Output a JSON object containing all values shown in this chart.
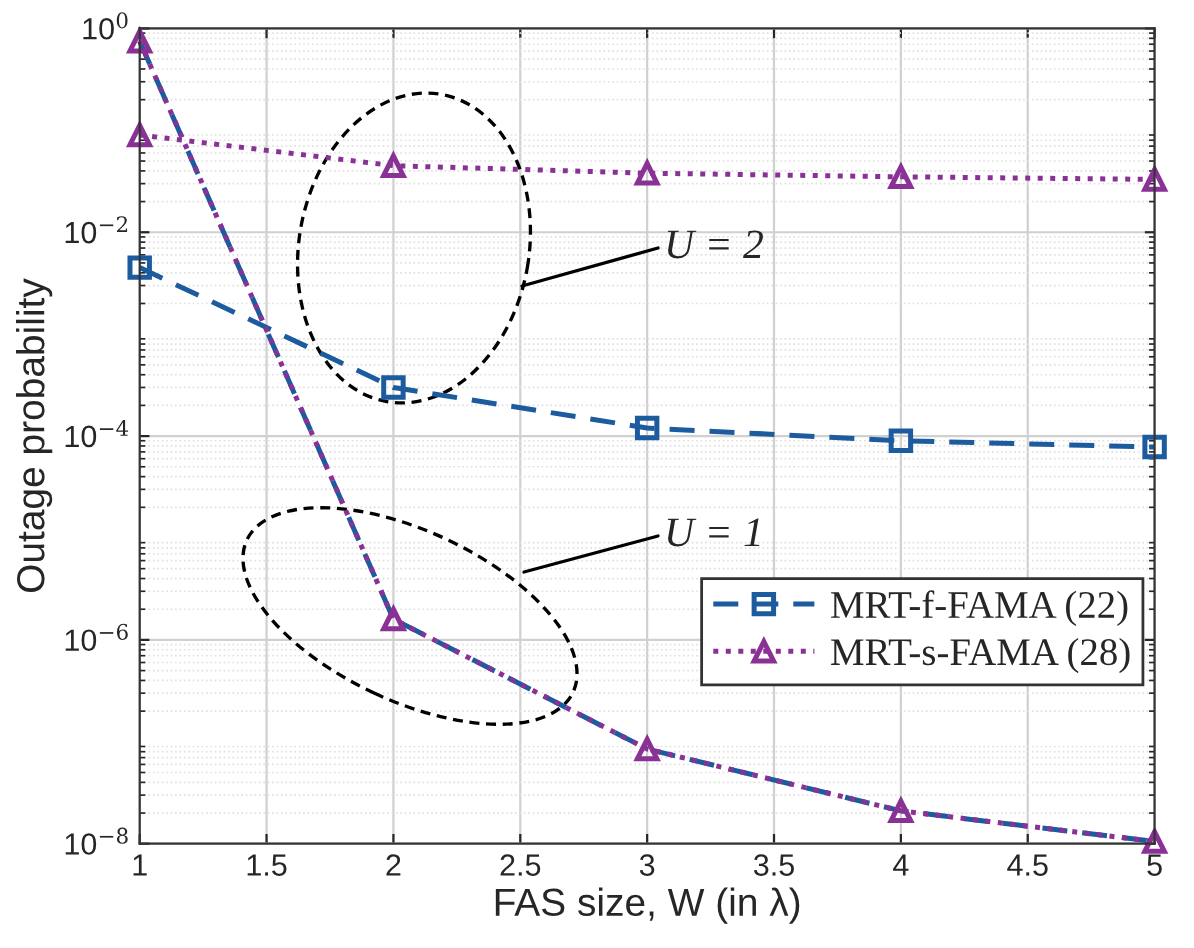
{
  "chart_data": {
    "type": "line",
    "xlabel": "FAS size, W (in λ)",
    "ylabel": "Outage probability",
    "x": [
      1,
      2,
      3,
      4,
      5
    ],
    "series": [
      {
        "name": "MRT-f-FAMA (22)",
        "color": "#1c5b9e",
        "values": [
          0.0045,
          0.0003,
          0.00012,
          9e-05,
          7.8e-05
        ],
        "marker": "square",
        "line_style": "dashed"
      },
      {
        "name": "MRT-s-FAMA (28)",
        "color": "#8a3196",
        "values": [
          0.09,
          0.045,
          0.038,
          0.035,
          0.033
        ],
        "marker": "triangle",
        "line_style": "dotted"
      },
      {
        "color": "#1c5b9e",
        "values": [
          0.75,
          1.6e-06,
          8.5e-08,
          2.1e-08,
          1.05e-08
        ],
        "marker": "none",
        "line_style": "dashed"
      },
      {
        "color": "#8a3196",
        "values": [
          0.75,
          1.6e-06,
          8.5e-08,
          2.1e-08,
          1.05e-08
        ],
        "marker": "triangle",
        "line_style": "dotted"
      }
    ],
    "log": "y",
    "xlim": [
      1,
      5
    ],
    "xticks": [
      1,
      1.5,
      2,
      2.5,
      3,
      3.5,
      4,
      4.5,
      5
    ],
    "ylim": [
      1e-08,
      1
    ],
    "yticks": [
      {
        "value": 1e-08,
        "label": "10$^{−8}$"
      },
      {
        "value": 1e-06,
        "label": "10$^{−6}$"
      },
      {
        "value": 0.0001,
        "label": "10$^{−4}$"
      },
      {
        "value": 0.01,
        "label": "10$^{−2}$"
      },
      {
        "value": 1,
        "label": "10$^{0}$"
      }
    ],
    "annotations": [
      "U = 2",
      "U = 1"
    ],
    "grid": true,
    "legend": "right"
  }
}
